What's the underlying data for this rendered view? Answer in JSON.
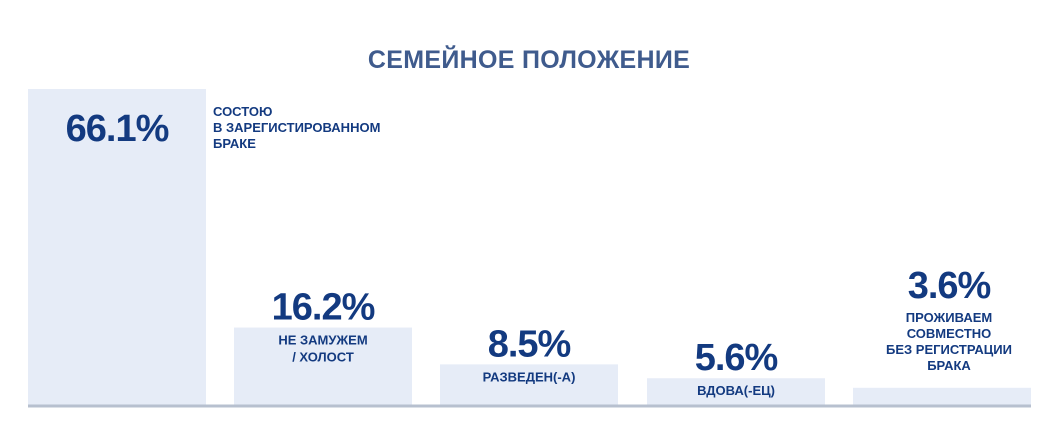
{
  "chart_data": {
    "type": "bar",
    "title": "СЕМЕЙНОЕ ПОЛОЖЕНИЕ",
    "categories": [
      [
        "СОСТОЮ",
        "В ЗАРЕГИСТИРОВАННОМ",
        "БРАКЕ"
      ],
      [
        "НЕ ЗАМУЖЕМ",
        "/ ХОЛОСТ"
      ],
      [
        "РАЗВЕДЕН(-А)"
      ],
      [
        "ВДОВА(-ЕЦ)"
      ],
      [
        "ПРОЖИВАЕМ",
        "СОВМЕСТНО",
        "БЕЗ РЕГИСТРАЦИИ",
        "БРАКА"
      ]
    ],
    "values": [
      66.1,
      16.2,
      8.5,
      5.6,
      3.6
    ],
    "value_labels": [
      "66.1%",
      "16.2%",
      "8.5%",
      "5.6%",
      "3.6%"
    ],
    "unit": "%",
    "ylim": [
      0,
      66.1
    ],
    "grid": false,
    "legend": "none",
    "colors": {
      "bar": "#e6ecf7",
      "baseline": "#b7c0cf",
      "text": "#133a80",
      "title": "#3f5b8d"
    }
  }
}
